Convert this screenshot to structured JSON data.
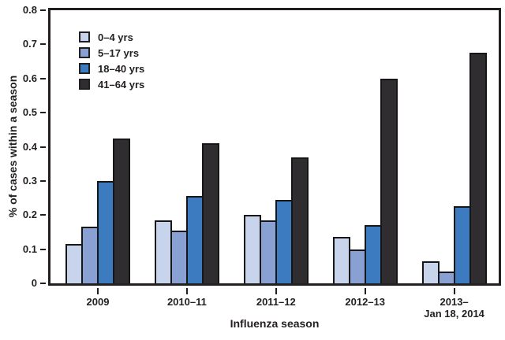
{
  "chart_data": {
    "type": "bar",
    "title": "",
    "xlabel": "Influenza season",
    "ylabel": "% of cases within a season",
    "ylim": [
      0,
      0.8
    ],
    "ytick_step": 0.1,
    "ytick_labels": [
      "0",
      "0.1",
      "0.2",
      "0.3",
      "0.4",
      "0.5",
      "0.6",
      "0.7",
      "0.8"
    ],
    "categories": [
      "2009",
      "2010–11",
      "2011–12",
      "2012–13",
      "2013–\nJan 18, 2014"
    ],
    "series": [
      {
        "name": "0–4 yrs",
        "color": "#c8d4ec",
        "values": [
          0.115,
          0.185,
          0.2,
          0.135,
          0.065
        ]
      },
      {
        "name": "5–17 yrs",
        "color": "#88a0d2",
        "values": [
          0.165,
          0.155,
          0.185,
          0.1,
          0.035
        ]
      },
      {
        "name": "18–40 yrs",
        "color": "#3d7bc1",
        "values": [
          0.3,
          0.255,
          0.245,
          0.17,
          0.225
        ]
      },
      {
        "name": "41–64 yrs",
        "color": "#2f2d30",
        "values": [
          0.425,
          0.41,
          0.37,
          0.6,
          0.675
        ]
      }
    ],
    "legend_position": "top-left-inside",
    "grid": false,
    "bar_outline_color": "#161616",
    "axis_color": "#231f20"
  }
}
